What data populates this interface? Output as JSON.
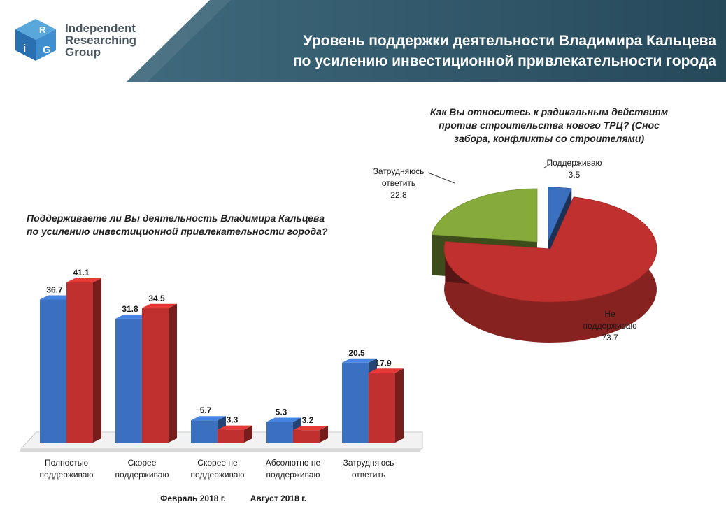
{
  "logo": {
    "letters": [
      "R",
      "i",
      "G"
    ],
    "line1": "Independent",
    "line2": "Researching",
    "line3": "Group"
  },
  "slide": {
    "title_line1": "Уровень поддержки деятельности Владимира Кальцева",
    "title_line2": "по усилению инвестиционной привлекательности города"
  },
  "colors": {
    "header": "#2f5465",
    "blue": "#3b6fbf",
    "red": "#c0302e",
    "green": "#86ab3b"
  },
  "chart_data": [
    {
      "type": "bar",
      "title_line1": "Поддерживаете ли Вы деятельность Владимира Кальцева",
      "title_line2": "по усилению инвестиционной привлекательности города?",
      "categories": [
        [
          "Полностью",
          "поддерживаю"
        ],
        [
          "Скорее",
          "поддерживаю"
        ],
        [
          "Скорее не",
          "поддерживаю"
        ],
        [
          "Абсолютно не",
          "поддерживаю"
        ],
        [
          "Затрудняюсь",
          "ответить"
        ]
      ],
      "series": [
        {
          "name": "Февраль 2018 г.",
          "values": [
            36.7,
            31.8,
            5.7,
            5.3,
            20.5
          ]
        },
        {
          "name": "Август 2018 г.",
          "values": [
            41.1,
            34.5,
            3.3,
            3.2,
            17.9
          ]
        }
      ],
      "ylim": [
        0,
        45
      ],
      "grid": false,
      "legend_position": "bottom"
    },
    {
      "type": "pie",
      "title_line1": "Как Вы относитесь к радикальным действиям",
      "title_line2": "против строительства нового ТРЦ? (Снос",
      "title_line3": "забора, конфликты со строителями)",
      "slices": [
        {
          "label": [
            "Поддерживаю"
          ],
          "value": 3.5
        },
        {
          "label": [
            "Не",
            "поддерживаю"
          ],
          "value": 73.7
        },
        {
          "label": [
            "Затрудняюсь",
            "ответить"
          ],
          "value": 22.8
        }
      ]
    }
  ]
}
